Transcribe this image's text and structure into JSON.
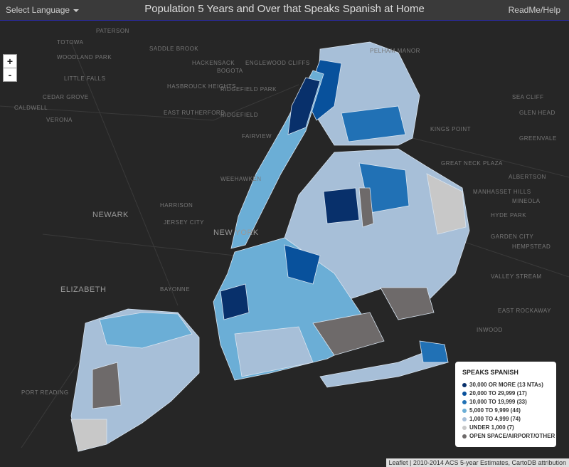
{
  "header": {
    "language_selector": "Select Language",
    "title": "Population 5 Years and Over that Speaks Spanish at Home",
    "help": "ReadMe/Help"
  },
  "zoom": {
    "in": "+",
    "out": "-"
  },
  "legend": {
    "title": "SPEAKS SPANISH",
    "items": [
      {
        "label": "30,000 OR MORE (13 NTAs)",
        "color": "#08306b"
      },
      {
        "label": "20,000 TO 29,999 (17)",
        "color": "#08519c"
      },
      {
        "label": "10,000 TO 19,999 (33)",
        "color": "#2171b5"
      },
      {
        "label": "5,000 TO 9,999 (44)",
        "color": "#6baed6"
      },
      {
        "label": "1,000 TO 4,999 (74)",
        "color": "#a7bfd8"
      },
      {
        "label": "UNDER 1,000 (7)",
        "color": "#c8c8c8"
      },
      {
        "label": "OPEN SPACE/AIRPORT/OTHER",
        "color": "#6e6a6a"
      }
    ]
  },
  "place_labels": [
    "PATERSON",
    "TOTOWA",
    "WOODLAND PARK",
    "SADDLE BROOK",
    "HACKENSACK",
    "LITTLE FALLS",
    "BOGOTA",
    "ENGLEWOOD CLIFFS",
    "CEDAR GROVE",
    "HASBROUCK HEIGHTS",
    "RIDGEFIELD PARK",
    "CALDWELL",
    "VERONA",
    "EAST RUTHERFORD",
    "RIDGEFIELD",
    "FAIRVIEW",
    "WEEHAWKEN",
    "NEWARK",
    "HARRISON",
    "JERSEY CITY",
    "NEW YORK",
    "ELIZABETH",
    "BAYONNE",
    "PELHAM MANOR",
    "KINGS POINT",
    "SEA CLIFF",
    "GLEN HEAD",
    "GREENVALE",
    "GREAT NECK PLAZA",
    "ALBERTSON",
    "MANHASSET HILLS",
    "MINEOLA",
    "HYDE PARK",
    "GARDEN CITY",
    "HEMPSTEAD",
    "VALLEY STREAM",
    "EAST ROCKAWAY",
    "INWOOD",
    "PORT READING"
  ],
  "attribution": "Leaflet | 2010-2014 ACS 5-year Estimates, CartoDB attribution"
}
